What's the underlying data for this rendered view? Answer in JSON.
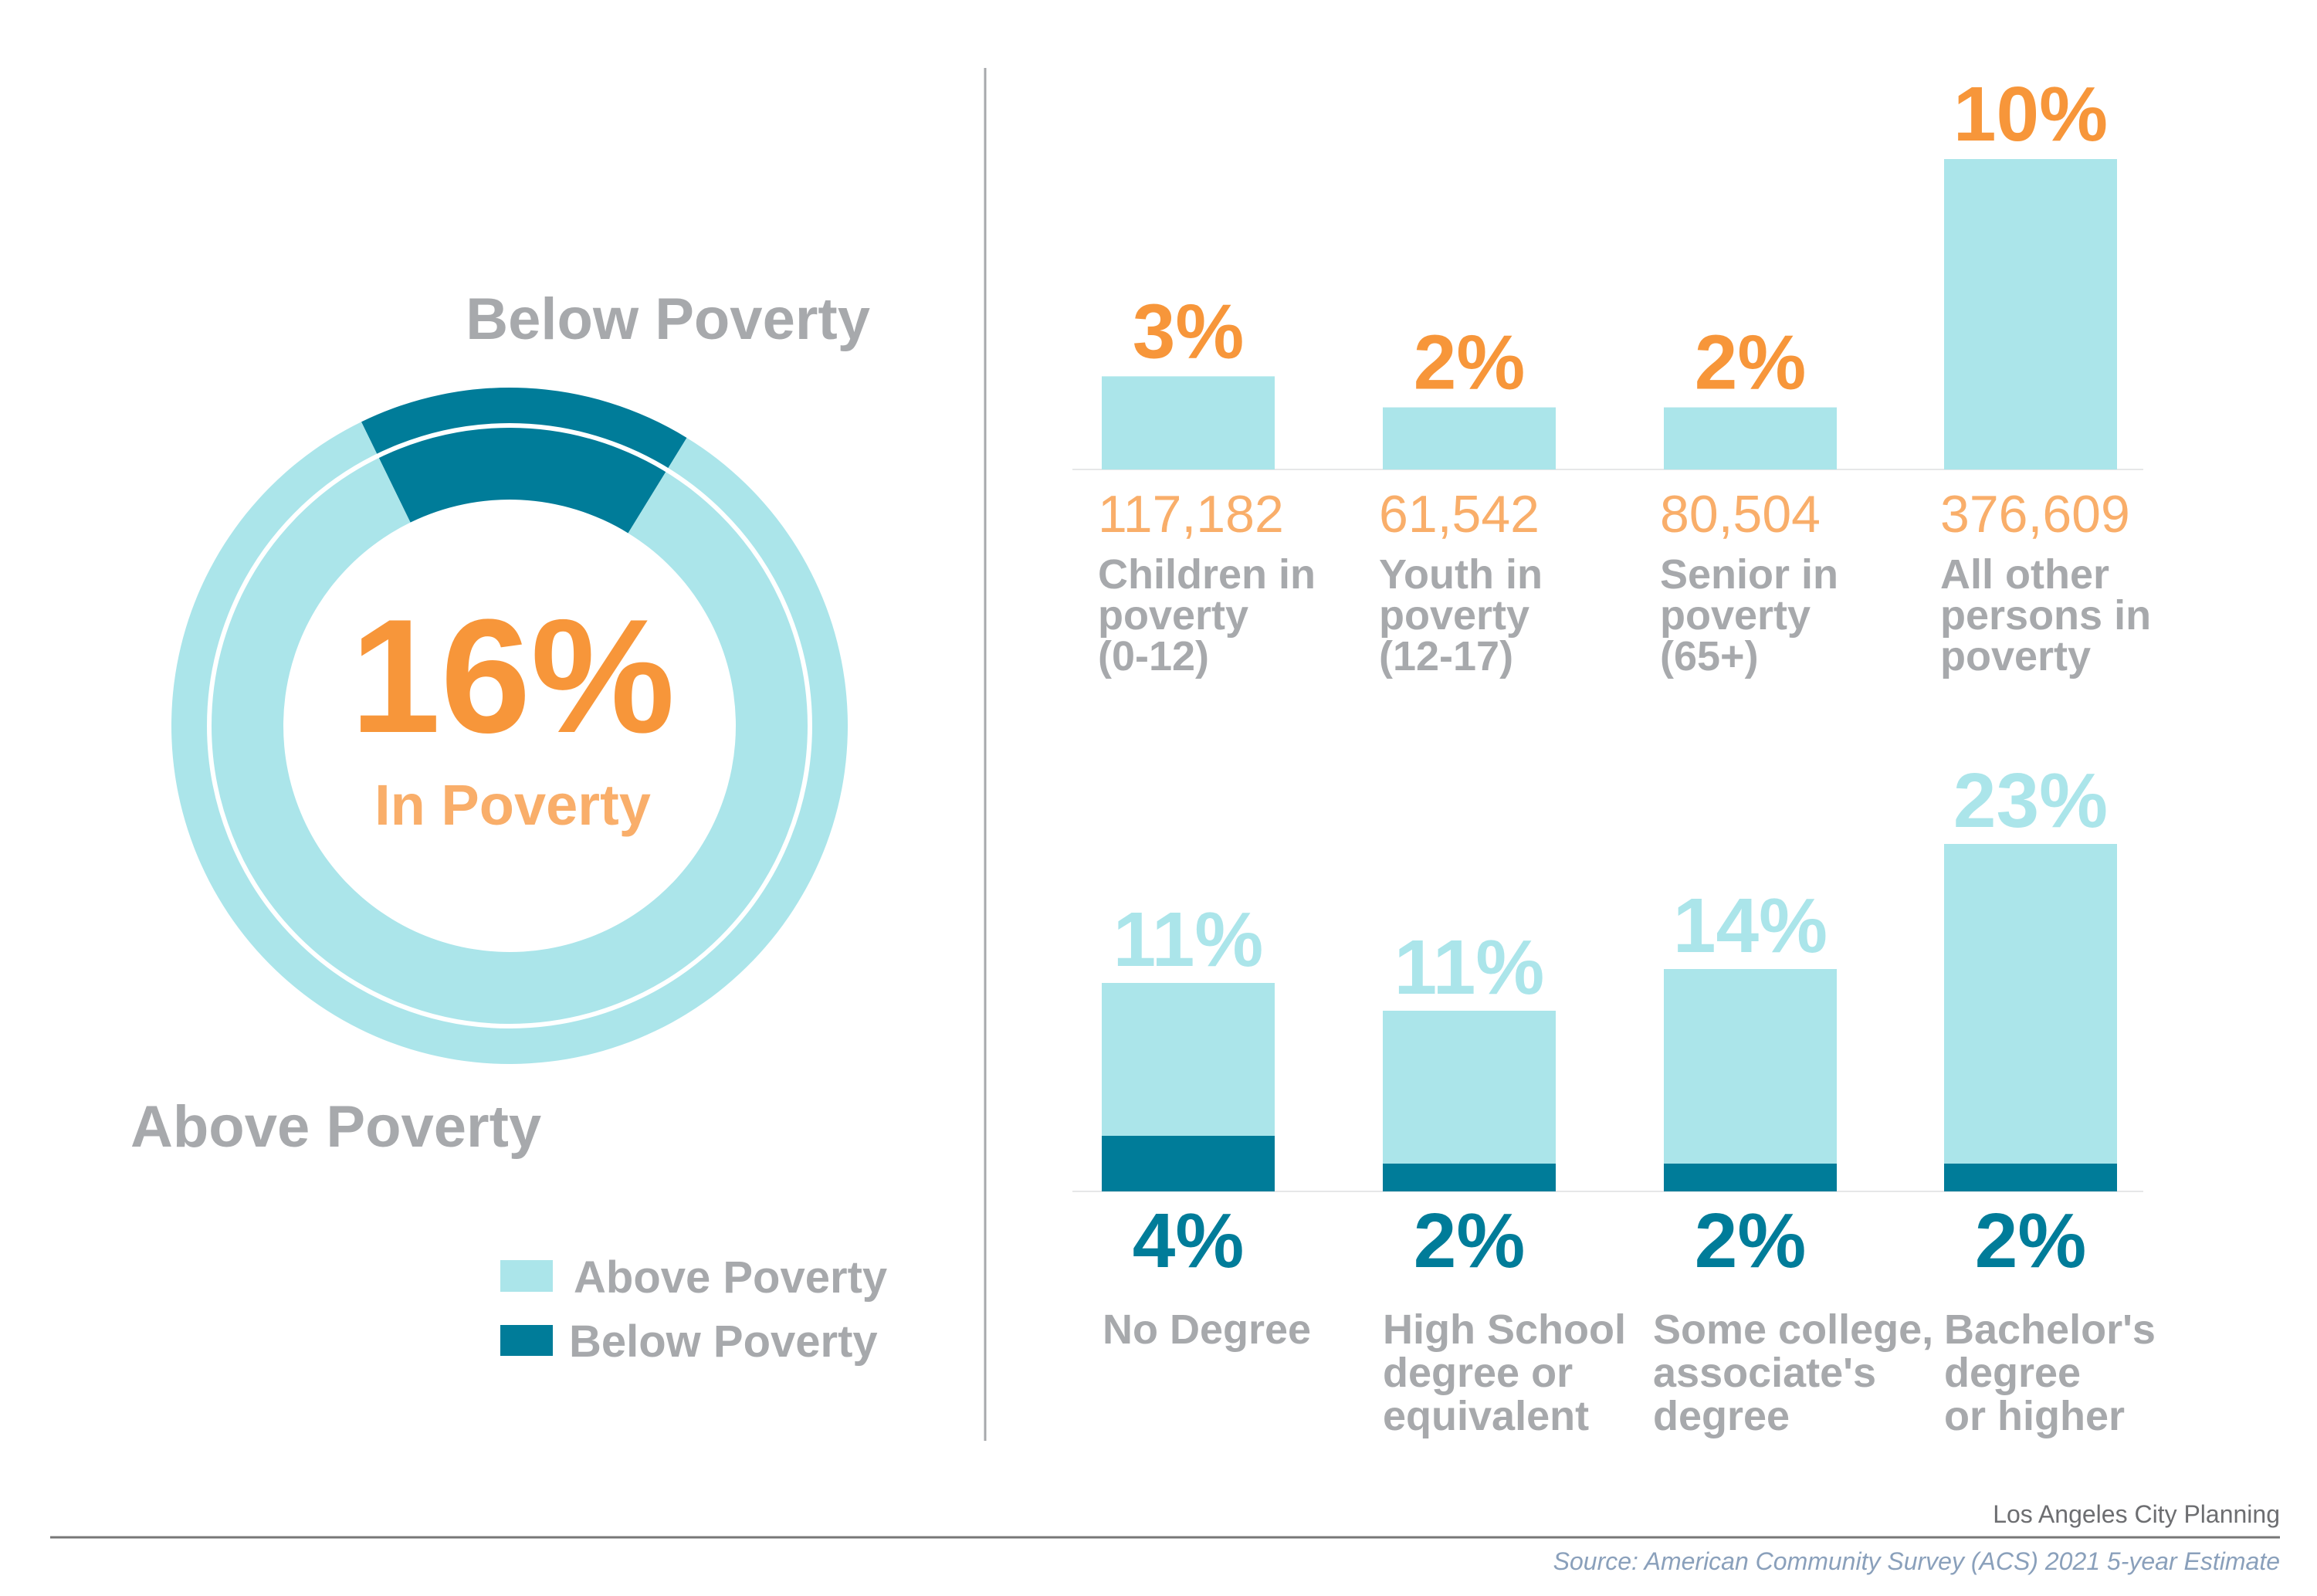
{
  "colors": {
    "above": "#abe5ea",
    "below": "#007c99",
    "orange": "#f7963a",
    "orange_light": "#f9ae6a",
    "gray": "#a7a9ac",
    "source": "#8aa0bb",
    "footer": "#6d6e71"
  },
  "chart_data": [
    {
      "type": "pie",
      "variant": "donut",
      "slices": [
        {
          "name": "Below Poverty",
          "value": 16
        },
        {
          "name": "Above Poverty",
          "value": 84
        }
      ],
      "center_value": "16%",
      "center_label": "In Poverty",
      "slice_labels": {
        "below": "Below Poverty",
        "above": "Above Poverty"
      },
      "legend": [
        "Above Poverty",
        "Below Poverty"
      ],
      "legend_placement": "bottom-right"
    },
    {
      "type": "bar",
      "categories": [
        [
          "Children in",
          "poverty",
          "(0-12)"
        ],
        [
          "Youth in",
          "poverty",
          "(12-17)"
        ],
        [
          "Senior in",
          "poverty",
          "(65+)"
        ],
        [
          "All other",
          "persons in",
          "poverty"
        ]
      ],
      "values": [
        3,
        2,
        2,
        10
      ],
      "value_labels": [
        "3%",
        "2%",
        "2%",
        "10%"
      ],
      "counts": [
        "117,182",
        "61,542",
        "80,504",
        "376,609"
      ],
      "grid": false
    },
    {
      "type": "bar",
      "stacked": true,
      "categories": [
        [
          "No Degree"
        ],
        [
          "High School",
          "degree or",
          "equivalent"
        ],
        [
          "Some college,",
          "associate's",
          "degree"
        ],
        [
          "Bachelor's",
          "degree",
          "or higher"
        ]
      ],
      "series": [
        {
          "name": "Below Poverty",
          "values": [
            4,
            2,
            2,
            2
          ],
          "labels": [
            "4%",
            "2%",
            "2%",
            "2%"
          ]
        },
        {
          "name": "Above Poverty",
          "values": [
            11,
            11,
            14,
            23
          ],
          "labels": [
            "11%",
            "11%",
            "14%",
            "23%"
          ]
        }
      ],
      "grid": false
    }
  ],
  "footer": {
    "org": "Los Angeles City Planning",
    "source": "Source: American Community Survey (ACS) 2021 5-year Estimate"
  }
}
